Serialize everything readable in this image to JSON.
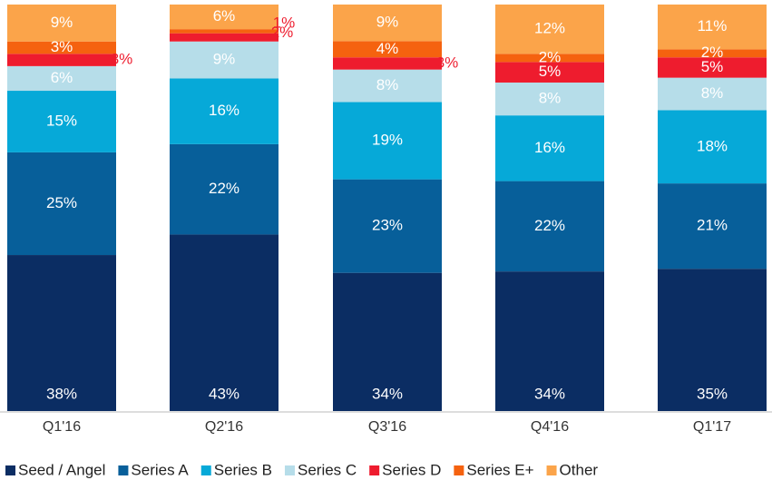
{
  "chart_data": {
    "type": "bar",
    "stacked": true,
    "normalized_percent": true,
    "title": "",
    "xlabel": "",
    "ylabel": "",
    "categories": [
      "Q1'16",
      "Q2'16",
      "Q3'16",
      "Q4'16",
      "Q1'17"
    ],
    "series": [
      {
        "name": "Seed / Angel",
        "color": "#0b2d63",
        "values": [
          38,
          43,
          34,
          34,
          35
        ]
      },
      {
        "name": "Series A",
        "color": "#075f9a",
        "values": [
          25,
          22,
          23,
          22,
          21
        ]
      },
      {
        "name": "Series B",
        "color": "#06a9d8",
        "values": [
          15,
          16,
          19,
          16,
          18
        ]
      },
      {
        "name": "Series C",
        "color": "#b6dde9",
        "values": [
          6,
          9,
          8,
          8,
          8
        ]
      },
      {
        "name": "Series D",
        "color": "#ee1c2e",
        "values": [
          3,
          2,
          3,
          5,
          5
        ]
      },
      {
        "name": "Series E+",
        "color": "#f5620f",
        "values": [
          3,
          1,
          4,
          2,
          2
        ]
      },
      {
        "name": "Other",
        "color": "#fba44a",
        "values": [
          9,
          6,
          9,
          12,
          11
        ]
      }
    ],
    "legend_position": "bottom",
    "grid": false
  }
}
